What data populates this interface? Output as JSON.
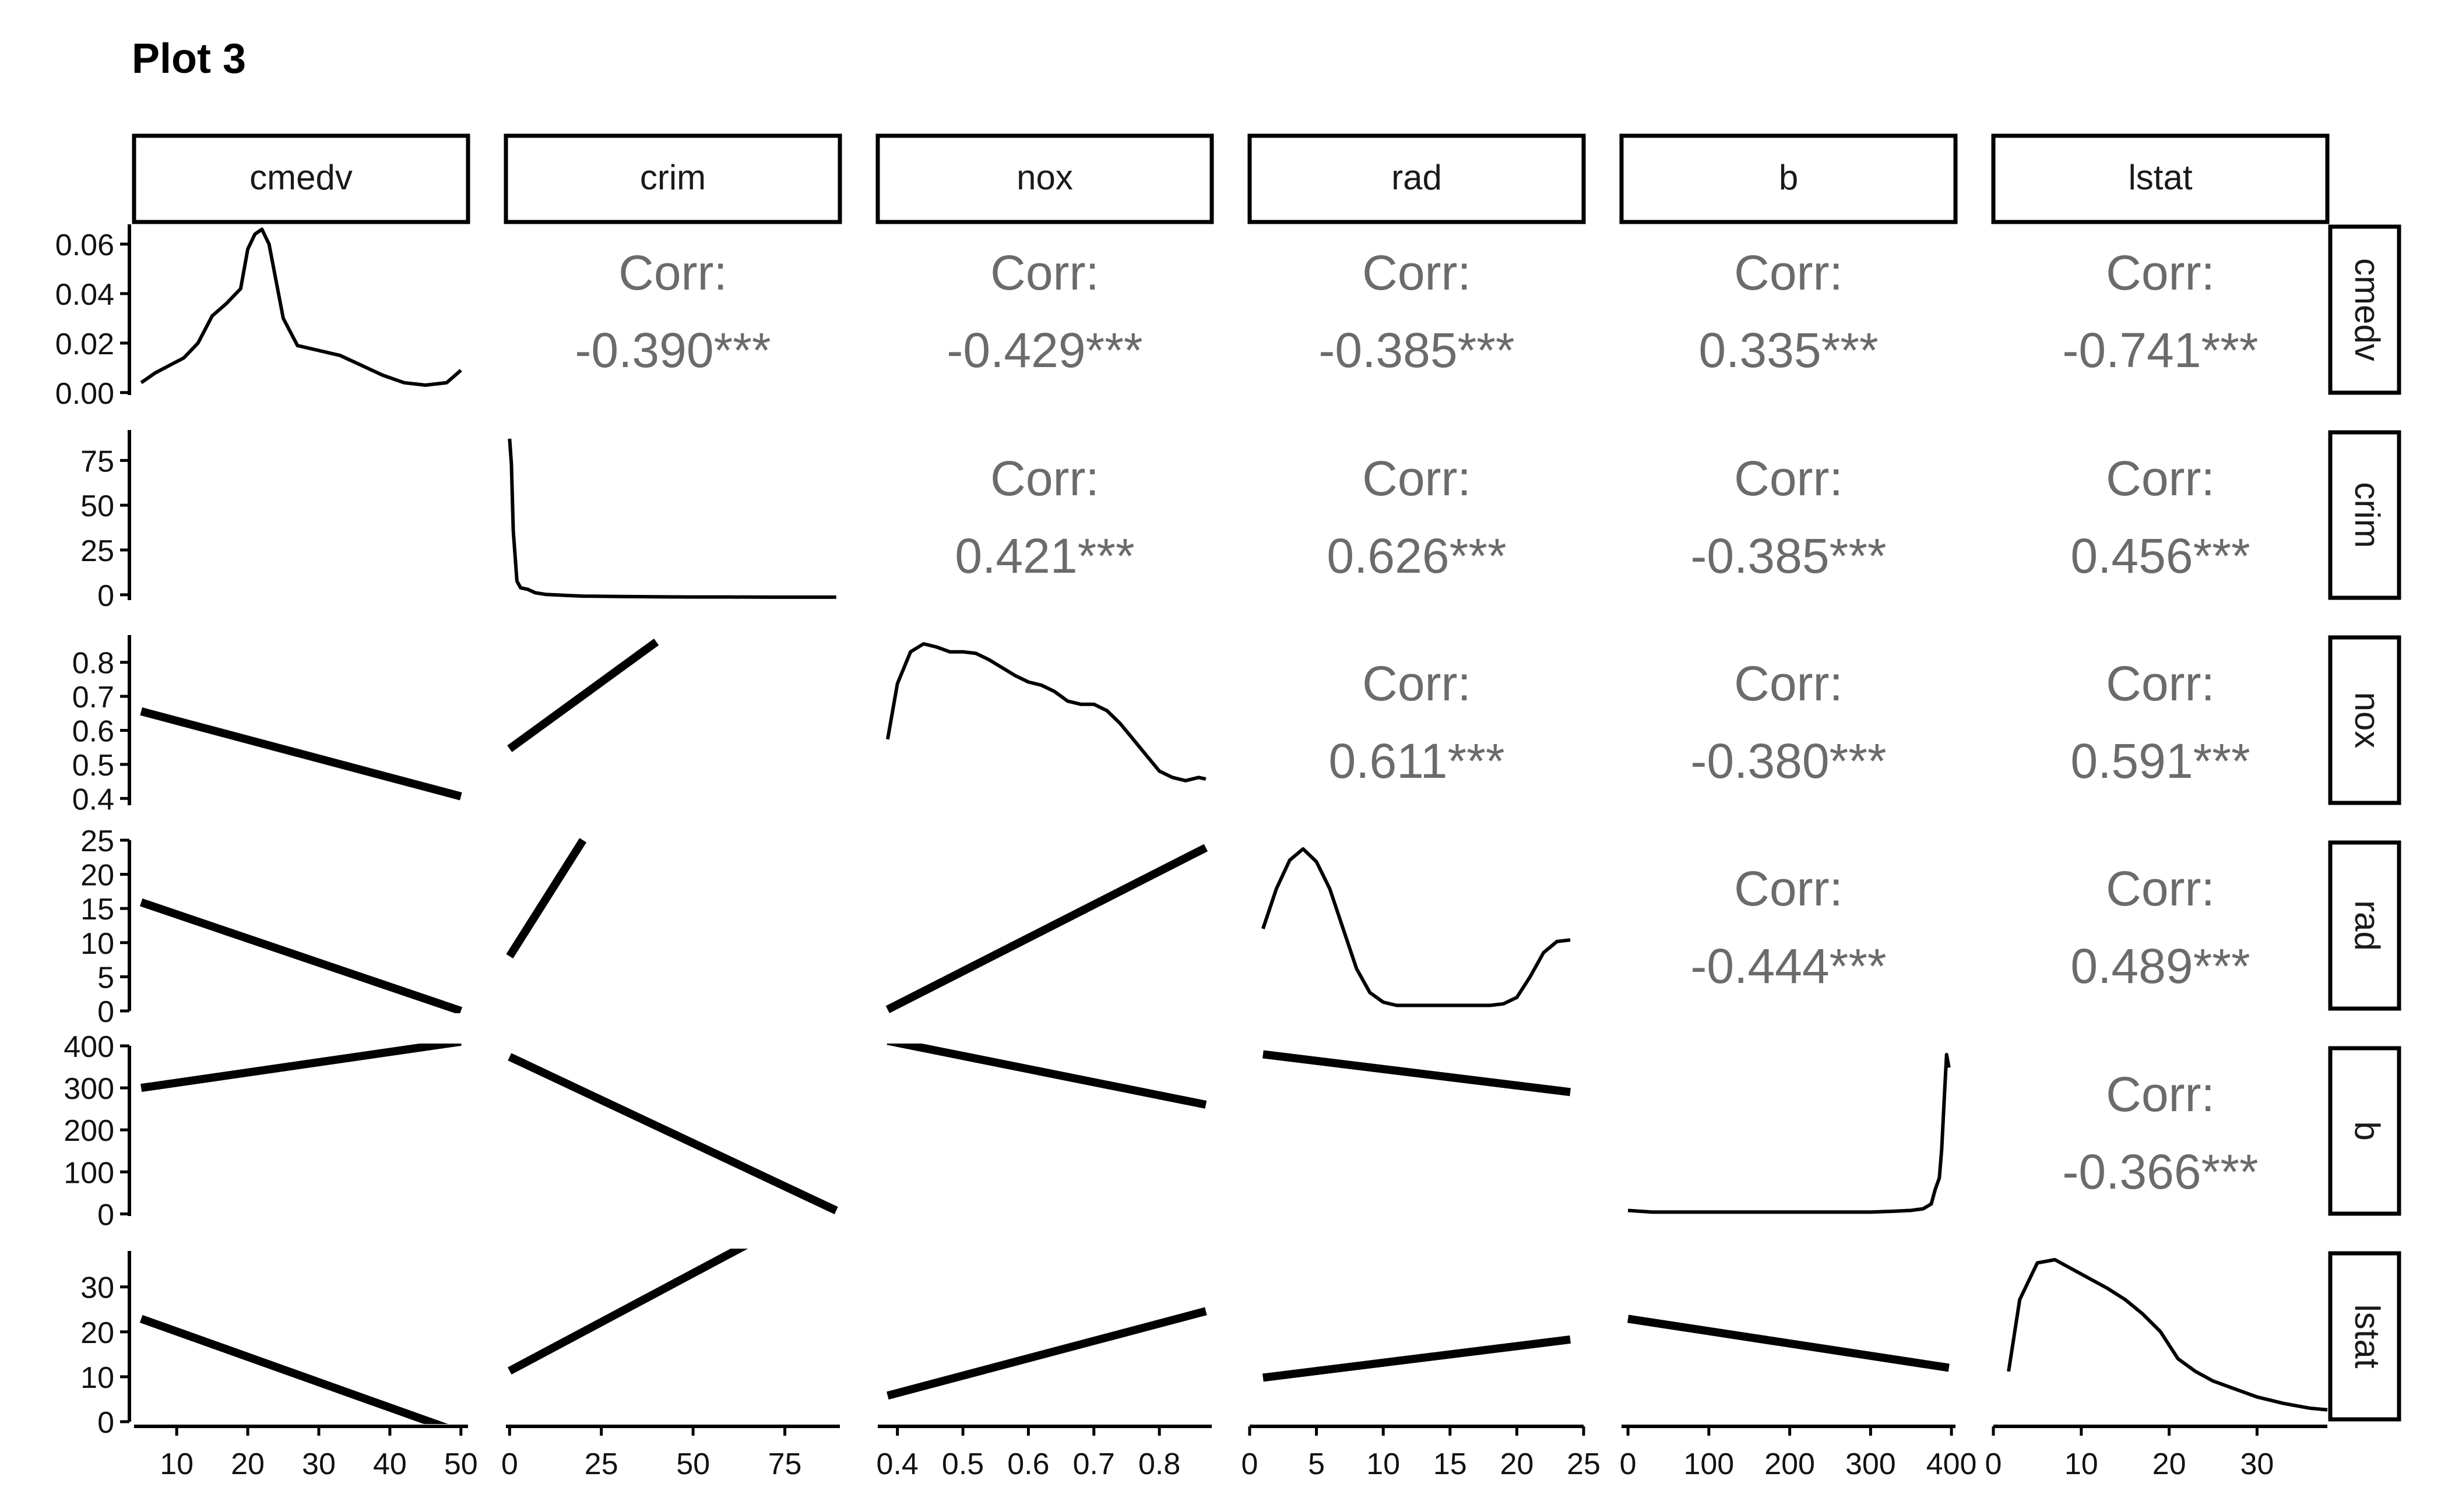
{
  "chart_data": {
    "type": "scatter",
    "title": "Plot 3",
    "variables": [
      "cmedv",
      "crim",
      "nox",
      "rad",
      "b",
      "lstat"
    ],
    "corr_label": "Corr:",
    "correlations": [
      {
        "row": "crim",
        "col": "cmedv",
        "text": "-0.390***",
        "value": -0.39
      },
      {
        "row": "nox",
        "col": "cmedv",
        "text": "-0.429***",
        "value": -0.429
      },
      {
        "row": "rad",
        "col": "cmedv",
        "text": "-0.385***",
        "value": -0.385
      },
      {
        "row": "b",
        "col": "cmedv",
        "text": "0.335***",
        "value": 0.335
      },
      {
        "row": "lstat",
        "col": "cmedv",
        "text": "-0.741***",
        "value": -0.741
      },
      {
        "row": "nox",
        "col": "crim",
        "text": "0.421***",
        "value": 0.421
      },
      {
        "row": "rad",
        "col": "crim",
        "text": "0.626***",
        "value": 0.626
      },
      {
        "row": "b",
        "col": "crim",
        "text": "-0.385***",
        "value": -0.385
      },
      {
        "row": "lstat",
        "col": "crim",
        "text": "0.456***",
        "value": 0.456
      },
      {
        "row": "rad",
        "col": "nox",
        "text": "0.611***",
        "value": 0.611
      },
      {
        "row": "b",
        "col": "nox",
        "text": "-0.380***",
        "value": -0.38
      },
      {
        "row": "lstat",
        "col": "nox",
        "text": "0.591***",
        "value": 0.591
      },
      {
        "row": "b",
        "col": "rad",
        "text": "-0.444***",
        "value": -0.444
      },
      {
        "row": "lstat",
        "col": "rad",
        "text": "0.489***",
        "value": 0.489
      },
      {
        "row": "lstat",
        "col": "b",
        "text": "-0.366***",
        "value": -0.366
      }
    ],
    "axes": {
      "cmedv": {
        "range": [
          4,
          51
        ],
        "ticks": [
          10,
          20,
          30,
          40,
          50
        ]
      },
      "crim": {
        "range": [
          -1,
          90
        ],
        "ticks": [
          0,
          25,
          50,
          75
        ]
      },
      "nox": {
        "range": [
          0.37,
          0.88
        ],
        "ticks": [
          0.4,
          0.5,
          0.6,
          0.7,
          0.8
        ]
      },
      "rad": {
        "range": [
          0,
          25
        ],
        "ticks": [
          0,
          5,
          10,
          15,
          20,
          25
        ]
      },
      "b": {
        "range": [
          -8,
          405
        ],
        "ticks": [
          0,
          100,
          200,
          300,
          400
        ]
      },
      "lstat": {
        "range": [
          0,
          38
        ],
        "ticks": [
          0,
          10,
          20,
          30
        ]
      }
    },
    "row_axes": {
      "cmedv": {
        "range": [
          -0.001,
          0.068
        ],
        "ticks": [
          0.0,
          0.02,
          0.04,
          0.06
        ],
        "tick_labels": [
          "0.00",
          "0.02",
          "0.04",
          "0.06"
        ]
      },
      "crim": {
        "range": [
          -3,
          92
        ],
        "ticks": [
          0,
          25,
          50,
          75
        ],
        "tick_labels": [
          "0",
          "25",
          "50",
          "75"
        ]
      },
      "nox": {
        "range": [
          0.38,
          0.88
        ],
        "ticks": [
          0.4,
          0.5,
          0.6,
          0.7,
          0.8
        ],
        "tick_labels": [
          "0.4",
          "0.5",
          "0.6",
          "0.7",
          "0.8"
        ]
      },
      "rad": {
        "range": [
          0,
          25
        ],
        "ticks": [
          0,
          5,
          10,
          15,
          20,
          25
        ],
        "tick_labels": [
          "0",
          "5",
          "10",
          "15",
          "20",
          "25"
        ]
      },
      "b": {
        "range": [
          -5,
          400
        ],
        "ticks": [
          0,
          100,
          200,
          300,
          400
        ],
        "tick_labels": [
          "0",
          "100",
          "200",
          "300",
          "400"
        ]
      },
      "lstat": {
        "range": [
          0,
          38
        ],
        "ticks": [
          0,
          10,
          20,
          30
        ],
        "tick_labels": [
          "0",
          "10",
          "20",
          "30"
        ]
      }
    },
    "densities": {
      "cmedv": {
        "x": [
          5,
          7,
          9,
          11,
          13,
          15,
          17,
          19,
          20,
          21,
          22,
          23,
          25,
          27,
          30,
          33,
          36,
          39,
          42,
          45,
          48,
          50
        ],
        "y": [
          0.004,
          0.008,
          0.011,
          0.014,
          0.02,
          0.031,
          0.036,
          0.042,
          0.058,
          0.064,
          0.066,
          0.06,
          0.03,
          0.019,
          0.017,
          0.015,
          0.011,
          0.007,
          0.004,
          0.003,
          0.004,
          0.009
        ]
      },
      "crim": {
        "x": [
          0,
          0.5,
          1,
          2,
          3,
          5,
          7,
          10,
          15,
          20,
          30,
          40,
          50,
          60,
          70,
          80,
          89
        ],
        "y": [
          0.95,
          0.8,
          0.4,
          0.1,
          0.06,
          0.05,
          0.03,
          0.02,
          0.015,
          0.01,
          0.008,
          0.006,
          0.005,
          0.005,
          0.004,
          0.004,
          0.004
        ]
      },
      "nox": {
        "x": [
          0.385,
          0.4,
          0.42,
          0.44,
          0.46,
          0.48,
          0.5,
          0.52,
          0.54,
          0.56,
          0.58,
          0.6,
          0.62,
          0.64,
          0.66,
          0.68,
          0.7,
          0.72,
          0.74,
          0.76,
          0.78,
          0.8,
          0.82,
          0.84,
          0.86,
          0.871
        ],
        "y": [
          0.4,
          0.75,
          0.95,
          1.0,
          0.98,
          0.95,
          0.95,
          0.94,
          0.9,
          0.85,
          0.8,
          0.76,
          0.74,
          0.7,
          0.64,
          0.62,
          0.62,
          0.58,
          0.5,
          0.4,
          0.3,
          0.2,
          0.16,
          0.14,
          0.16,
          0.15
        ]
      },
      "rad": {
        "x": [
          1,
          2,
          3,
          4,
          5,
          6,
          7,
          8,
          9,
          10,
          11,
          12,
          13,
          14,
          15,
          16,
          17,
          18,
          19,
          20,
          21,
          22,
          23,
          24
        ],
        "y": [
          0.5,
          0.75,
          0.93,
          1.0,
          0.92,
          0.75,
          0.5,
          0.25,
          0.1,
          0.04,
          0.02,
          0.02,
          0.02,
          0.02,
          0.02,
          0.02,
          0.02,
          0.02,
          0.03,
          0.07,
          0.2,
          0.35,
          0.42,
          0.43
        ]
      },
      "b": {
        "x": [
          0,
          30,
          60,
          90,
          120,
          150,
          180,
          210,
          240,
          270,
          300,
          330,
          350,
          365,
          375,
          380,
          385,
          388,
          391,
          394,
          396.9
        ],
        "y": [
          0.02,
          0.01,
          0.01,
          0.01,
          0.01,
          0.01,
          0.01,
          0.01,
          0.01,
          0.01,
          0.01,
          0.015,
          0.02,
          0.03,
          0.06,
          0.15,
          0.22,
          0.4,
          0.7,
          0.98,
          0.9
        ]
      },
      "lstat": {
        "x": [
          1.73,
          3,
          5,
          7,
          9,
          11,
          13,
          15,
          17,
          19,
          21,
          23,
          25,
          27,
          30,
          33,
          36,
          38
        ],
        "y": [
          0.3,
          0.75,
          0.98,
          1.0,
          0.94,
          0.88,
          0.82,
          0.75,
          0.66,
          0.55,
          0.38,
          0.3,
          0.24,
          0.2,
          0.14,
          0.1,
          0.07,
          0.06
        ]
      }
    },
    "regressions": {
      "nox~cmedv": {
        "x": [
          5,
          50
        ],
        "y": [
          0.656,
          0.406
        ]
      },
      "rad~cmedv": {
        "x": [
          5,
          50
        ],
        "y": [
          15.9,
          0.0
        ]
      },
      "b~cmedv": {
        "x": [
          5,
          50
        ],
        "y": [
          300,
          410
        ]
      },
      "lstat~cmedv": {
        "x": [
          5,
          50
        ],
        "y": [
          22.9,
          -2.5
        ]
      },
      "nox~crim": {
        "x": [
          0,
          40
        ],
        "y": [
          0.546,
          0.86
        ]
      },
      "rad~crim": {
        "x": [
          0,
          20
        ],
        "y": [
          8.0,
          25
        ]
      },
      "b~crim": {
        "x": [
          0,
          89
        ],
        "y": [
          374,
          8
        ]
      },
      "lstat~crim": {
        "x": [
          0,
          89
        ],
        "y": [
          11.3,
          50
        ]
      },
      "rad~nox": {
        "x": [
          0.385,
          0.871
        ],
        "y": [
          0.2,
          23.9
        ]
      },
      "b~nox": {
        "x": [
          0.385,
          0.871
        ],
        "y": [
          412,
          260
        ]
      },
      "lstat~nox": {
        "x": [
          0.385,
          0.871
        ],
        "y": [
          5.8,
          24.6
        ]
      },
      "b~rad": {
        "x": [
          1,
          24
        ],
        "y": [
          380,
          290
        ]
      },
      "lstat~rad": {
        "x": [
          1,
          24
        ],
        "y": [
          9.8,
          18.3
        ]
      },
      "lstat~b": {
        "x": [
          0,
          396.9
        ],
        "y": [
          22.9,
          12.0
        ]
      }
    },
    "series_note": "",
    "xlabel": "",
    "ylabel": ""
  }
}
